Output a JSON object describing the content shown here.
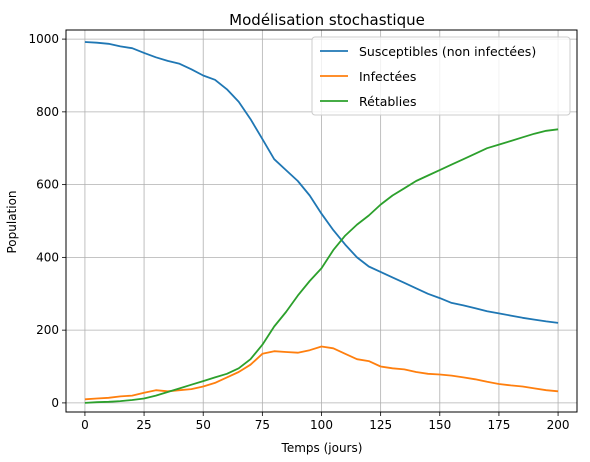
{
  "chart_data": {
    "type": "line",
    "title": "Modélisation stochastique",
    "xlabel": "Temps (jours)",
    "ylabel": "Population",
    "xlim": [
      -8,
      208
    ],
    "ylim": [
      -25,
      1025
    ],
    "xticks": [
      0,
      25,
      50,
      75,
      100,
      125,
      150,
      175,
      200
    ],
    "yticks": [
      0,
      200,
      400,
      600,
      800,
      1000
    ],
    "grid": true,
    "legend_position": "top-right",
    "x": [
      0,
      5,
      10,
      15,
      20,
      25,
      30,
      35,
      40,
      45,
      50,
      55,
      60,
      65,
      70,
      75,
      80,
      85,
      90,
      95,
      100,
      105,
      110,
      115,
      120,
      125,
      130,
      135,
      140,
      145,
      150,
      155,
      160,
      165,
      170,
      175,
      180,
      185,
      190,
      195,
      200
    ],
    "series": [
      {
        "name": "Susceptibles (non infectées)",
        "color": "#1f77b4",
        "values": [
          992,
          990,
          987,
          980,
          975,
          962,
          950,
          940,
          932,
          917,
          900,
          888,
          862,
          828,
          780,
          725,
          670,
          640,
          610,
          570,
          520,
          475,
          435,
          400,
          375,
          360,
          345,
          330,
          315,
          300,
          288,
          275,
          268,
          260,
          252,
          246,
          240,
          234,
          229,
          224,
          220
        ]
      },
      {
        "name": "Infectées",
        "color": "#ff7f0e",
        "values": [
          10,
          12,
          14,
          18,
          20,
          28,
          35,
          32,
          35,
          38,
          45,
          55,
          70,
          85,
          105,
          135,
          142,
          140,
          138,
          145,
          155,
          150,
          135,
          120,
          115,
          100,
          95,
          92,
          85,
          80,
          78,
          75,
          70,
          65,
          58,
          52,
          48,
          45,
          40,
          35,
          32
        ]
      },
      {
        "name": "Rétablies",
        "color": "#2ca02c",
        "values": [
          0,
          2,
          3,
          5,
          8,
          12,
          20,
          30,
          40,
          50,
          60,
          70,
          80,
          95,
          120,
          160,
          210,
          250,
          295,
          335,
          370,
          420,
          460,
          490,
          515,
          545,
          570,
          590,
          610,
          625,
          640,
          655,
          670,
          685,
          700,
          710,
          720,
          730,
          740,
          748,
          752
        ]
      }
    ]
  }
}
